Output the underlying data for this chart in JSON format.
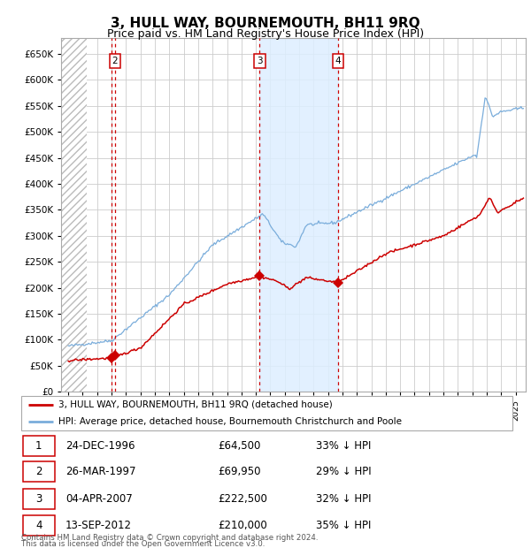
{
  "title": "3, HULL WAY, BOURNEMOUTH, BH11 9RQ",
  "subtitle": "Price paid vs. HM Land Registry's House Price Index (HPI)",
  "footer1": "Contains HM Land Registry data © Crown copyright and database right 2024.",
  "footer2": "This data is licensed under the Open Government Licence v3.0.",
  "legend_red": "3, HULL WAY, BOURNEMOUTH, BH11 9RQ (detached house)",
  "legend_blue": "HPI: Average price, detached house, Bournemouth Christchurch and Poole",
  "transactions": [
    {
      "num": 1,
      "date": "24-DEC-1996",
      "price": 64500,
      "price_str": "£64,500",
      "pct": "33% ↓ HPI",
      "x_year": 1996.98
    },
    {
      "num": 2,
      "date": "26-MAR-1997",
      "price": 69950,
      "price_str": "£69,950",
      "pct": "29% ↓ HPI",
      "x_year": 1997.23
    },
    {
      "num": 3,
      "date": "04-APR-2007",
      "price": 222500,
      "price_str": "£222,500",
      "pct": "32% ↓ HPI",
      "x_year": 2007.26
    },
    {
      "num": 4,
      "date": "13-SEP-2012",
      "price": 210000,
      "price_str": "£210,000",
      "pct": "35% ↓ HPI",
      "x_year": 2012.71
    }
  ],
  "shade_x1": 2007.26,
  "shade_x2": 2012.71,
  "ylim": [
    0,
    680000
  ],
  "xlim_left": 1993.5,
  "xlim_right": 2025.7,
  "hatch_end": 1995.3,
  "red_color": "#cc0000",
  "blue_color": "#7aaddb",
  "shade_color": "#ddeeff",
  "grid_color": "#cccccc",
  "hatch_color": "#bbbbbb",
  "background_color": "#ffffff",
  "title_fontsize": 11,
  "subtitle_fontsize": 9
}
